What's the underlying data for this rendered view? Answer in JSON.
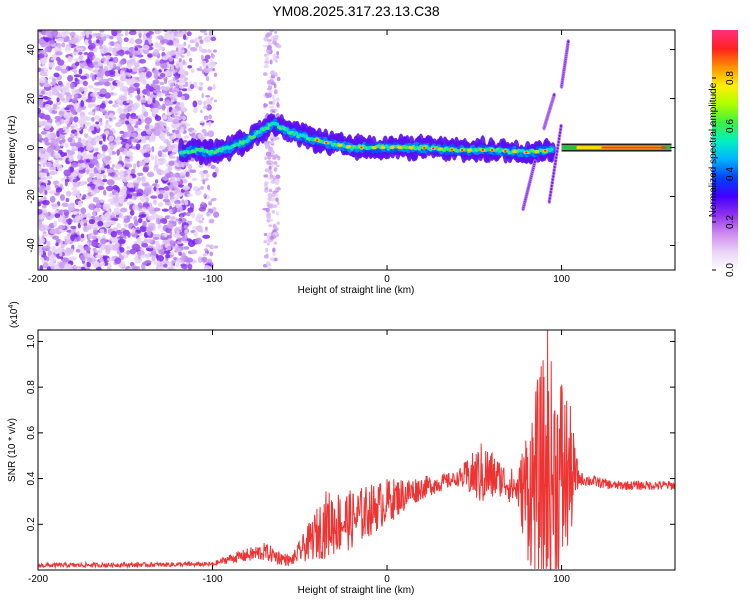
{
  "title": "YM08.2025.317.23.13.C38",
  "chart_data": [
    {
      "type": "heatmap",
      "name": "spectrogram",
      "xlabel": "Height of straight line (km)",
      "ylabel": "Frequency (Hz)",
      "xlim": [
        -200,
        165
      ],
      "ylim": [
        -50,
        48
      ],
      "xticks": [
        -200,
        -100,
        0,
        100
      ],
      "yticks": [
        -40,
        -20,
        0,
        20,
        40
      ],
      "colorbar": {
        "label": "Normalized spectral amplitude",
        "range": [
          0,
          1
        ],
        "ticks": [
          "0.0",
          "0.2",
          "0.4",
          "0.6",
          "0.8"
        ],
        "colors": [
          "#ffffff",
          "#e9d3f7",
          "#cc88ee",
          "#8f30ee",
          "#4000ff",
          "#0044ff",
          "#00b5ff",
          "#00f0c0",
          "#40f040",
          "#b0ff00",
          "#ffee00",
          "#ff9000",
          "#ff2020",
          "#ff3080"
        ]
      },
      "features": {
        "noise_region_km": [
          -200,
          -115
        ],
        "main_track": [
          {
            "x": -118,
            "f": -2
          },
          {
            "x": -110,
            "f": -1
          },
          {
            "x": -100,
            "f": -2
          },
          {
            "x": -90,
            "f": 0
          },
          {
            "x": -80,
            "f": 3
          },
          {
            "x": -72,
            "f": 7
          },
          {
            "x": -65,
            "f": 10
          },
          {
            "x": -60,
            "f": 8
          },
          {
            "x": -55,
            "f": 6
          },
          {
            "x": -45,
            "f": 4
          },
          {
            "x": -35,
            "f": 2
          },
          {
            "x": -20,
            "f": 0
          },
          {
            "x": 0,
            "f": 0
          },
          {
            "x": 20,
            "f": 0
          },
          {
            "x": 40,
            "f": -1
          },
          {
            "x": 60,
            "f": -1
          },
          {
            "x": 80,
            "f": -2
          },
          {
            "x": 95,
            "f": -1
          }
        ],
        "flat_tone_km": [
          100,
          163
        ],
        "flat_tone_hz": 0
      }
    },
    {
      "type": "line",
      "name": "snr",
      "xlabel": "Height of straight line (km)",
      "ylabel": "SNR (10 * v/v)",
      "multiplier_label": "(x10",
      "multiplier_exp": "4",
      "xlim": [
        -200,
        165
      ],
      "ylim": [
        0,
        1.05
      ],
      "xticks": [
        -200,
        -100,
        0,
        100
      ],
      "yticks": [
        0.2,
        0.4,
        0.6,
        0.8,
        1.0
      ],
      "color": "#ee3333",
      "envelope": [
        {
          "x": -200,
          "base": 0.02,
          "amp": 0.01
        },
        {
          "x": -100,
          "base": 0.025,
          "amp": 0.01
        },
        {
          "x": -90,
          "base": 0.05,
          "amp": 0.02
        },
        {
          "x": -70,
          "base": 0.08,
          "amp": 0.04
        },
        {
          "x": -60,
          "base": 0.05,
          "amp": 0.03
        },
        {
          "x": -55,
          "base": 0.04,
          "amp": 0.02
        },
        {
          "x": -45,
          "base": 0.12,
          "amp": 0.08
        },
        {
          "x": -35,
          "base": 0.2,
          "amp": 0.15
        },
        {
          "x": -20,
          "base": 0.22,
          "amp": 0.13
        },
        {
          "x": 0,
          "base": 0.3,
          "amp": 0.1
        },
        {
          "x": 20,
          "base": 0.36,
          "amp": 0.05
        },
        {
          "x": 40,
          "base": 0.4,
          "amp": 0.03
        },
        {
          "x": 55,
          "base": 0.42,
          "amp": 0.15
        },
        {
          "x": 65,
          "base": 0.4,
          "amp": 0.08
        },
        {
          "x": 75,
          "base": 0.35,
          "amp": 0.08
        },
        {
          "x": 80,
          "base": 0.35,
          "amp": 0.3
        },
        {
          "x": 90,
          "base": 0.4,
          "amp": 0.55
        },
        {
          "x": 100,
          "base": 0.4,
          "amp": 0.5
        },
        {
          "x": 105,
          "base": 0.42,
          "amp": 0.3
        },
        {
          "x": 110,
          "base": 0.4,
          "amp": 0.03
        },
        {
          "x": 130,
          "base": 0.37,
          "amp": 0.02
        },
        {
          "x": 165,
          "base": 0.37,
          "amp": 0.02
        }
      ],
      "peak": {
        "x": 92,
        "y": 1.05
      }
    }
  ]
}
